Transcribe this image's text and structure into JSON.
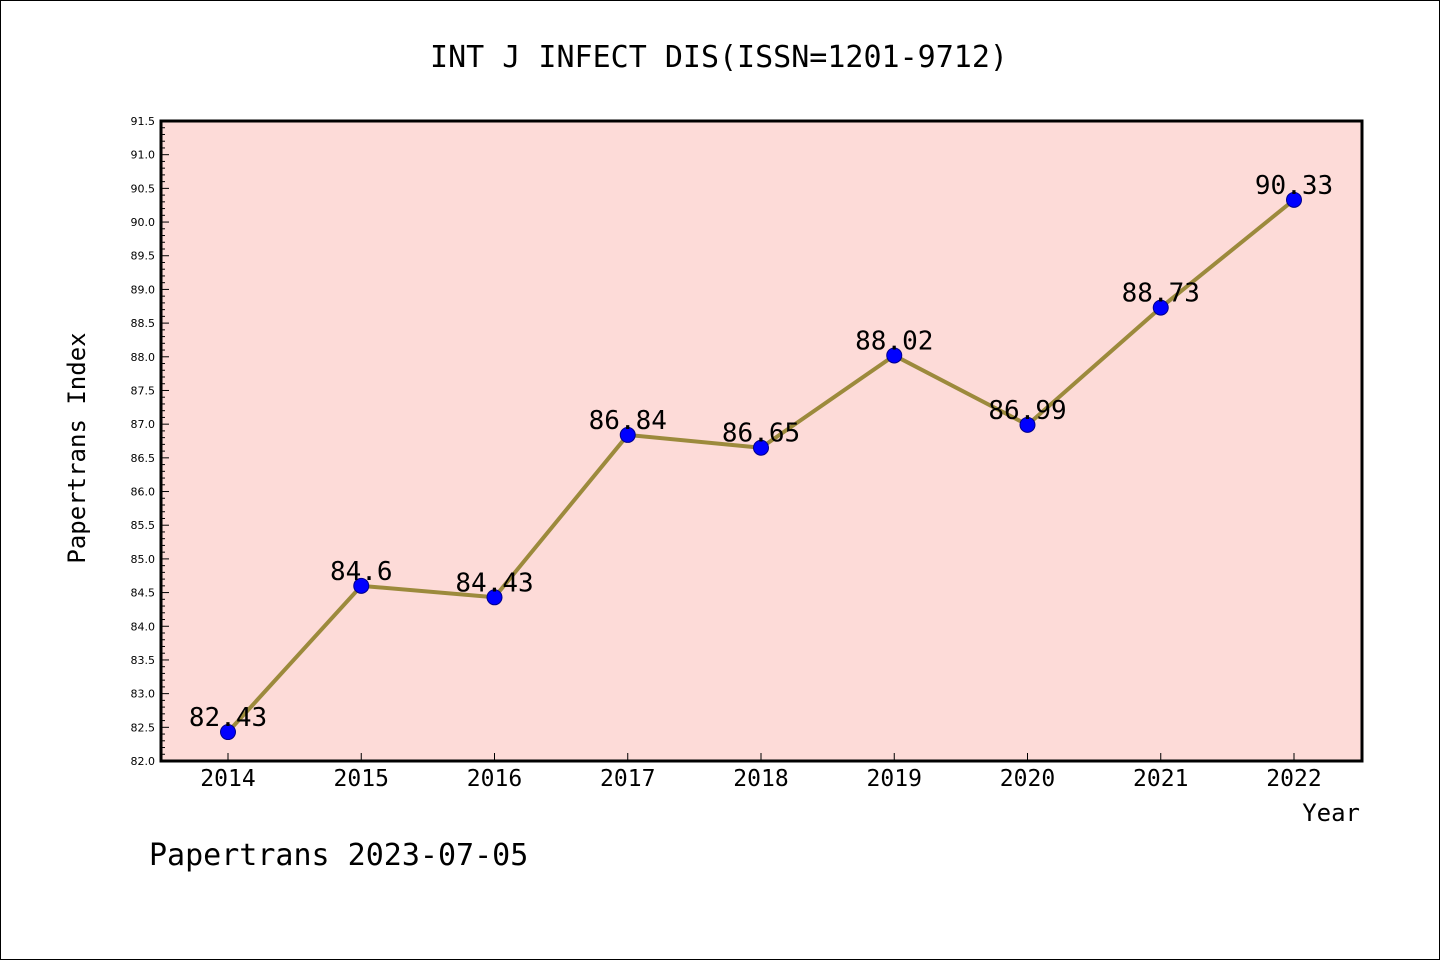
{
  "chart_data": {
    "type": "line",
    "title": "INT J INFECT DIS(ISSN=1201-9712)",
    "xlabel": "Year",
    "ylabel": "Papertrans Index",
    "categories": [
      "2014",
      "2015",
      "2016",
      "2017",
      "2018",
      "2019",
      "2020",
      "2021",
      "2022"
    ],
    "values": [
      82.43,
      84.6,
      84.43,
      86.84,
      86.65,
      88.02,
      86.99,
      88.73,
      90.33
    ],
    "data_labels": [
      "82.43",
      "84.6",
      "84.43",
      "86.84",
      "86.65",
      "88.02",
      "86.99",
      "88.73",
      "90.33"
    ],
    "ylim": [
      82.0,
      91.5
    ],
    "yticks": [
      "82.0",
      "82.5",
      "83.0",
      "83.5",
      "84.0",
      "84.5",
      "85.0",
      "85.5",
      "86.0",
      "86.5",
      "87.0",
      "87.5",
      "88.0",
      "88.5",
      "89.0",
      "89.5",
      "90.0",
      "90.5",
      "91.0",
      "91.5"
    ],
    "grid": false,
    "colors": {
      "plot_background": "#fddbd8",
      "line": "#9c8a3c",
      "marker": "#0000ff"
    }
  },
  "footer": "Papertrans 2023-07-05"
}
